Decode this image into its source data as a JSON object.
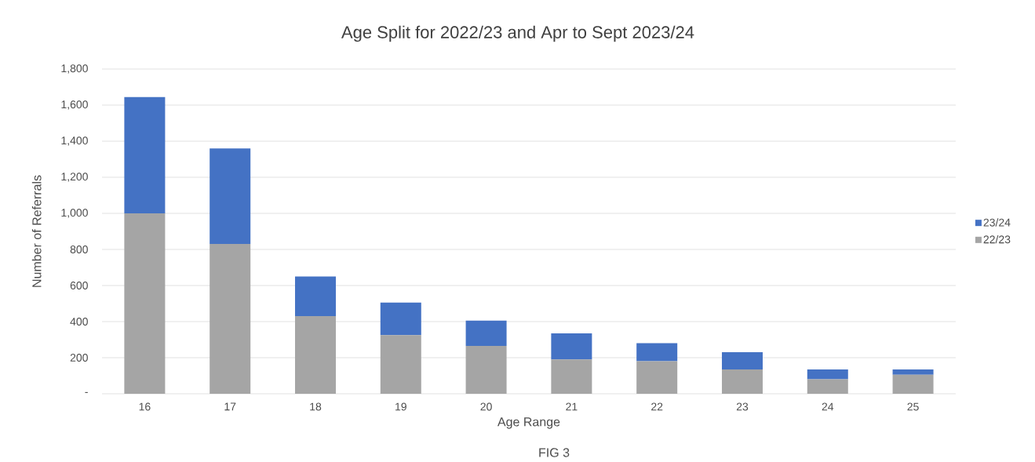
{
  "chart_data": {
    "type": "bar",
    "stacked": true,
    "title": "Age Split for 2022/23 and Apr to Sept 2023/24",
    "xlabel": "Age Range",
    "ylabel": "Number of Referrals",
    "categories": [
      "16",
      "17",
      "18",
      "19",
      "20",
      "21",
      "22",
      "23",
      "24",
      "25"
    ],
    "series": [
      {
        "name": "22/23",
        "color": "#a5a5a5",
        "values": [
          1000,
          830,
          430,
          325,
          265,
          190,
          180,
          135,
          80,
          105
        ]
      },
      {
        "name": "23/24",
        "color": "#4472c4",
        "values": [
          645,
          530,
          220,
          180,
          140,
          145,
          100,
          95,
          55,
          30
        ]
      }
    ],
    "ylim": [
      0,
      1800
    ],
    "yticks": [
      {
        "value": 0,
        "label": "-"
      },
      {
        "value": 200,
        "label": "200"
      },
      {
        "value": 400,
        "label": "400"
      },
      {
        "value": 600,
        "label": "600"
      },
      {
        "value": 800,
        "label": "800"
      },
      {
        "value": 1000,
        "label": "1,000"
      },
      {
        "value": 1200,
        "label": "1,200"
      },
      {
        "value": 1400,
        "label": "1,400"
      },
      {
        "value": 1600,
        "label": "1,600"
      },
      {
        "value": 1800,
        "label": "1,800"
      }
    ],
    "grid": "y",
    "legend": "right",
    "annotations": [
      "FIG 3"
    ]
  }
}
